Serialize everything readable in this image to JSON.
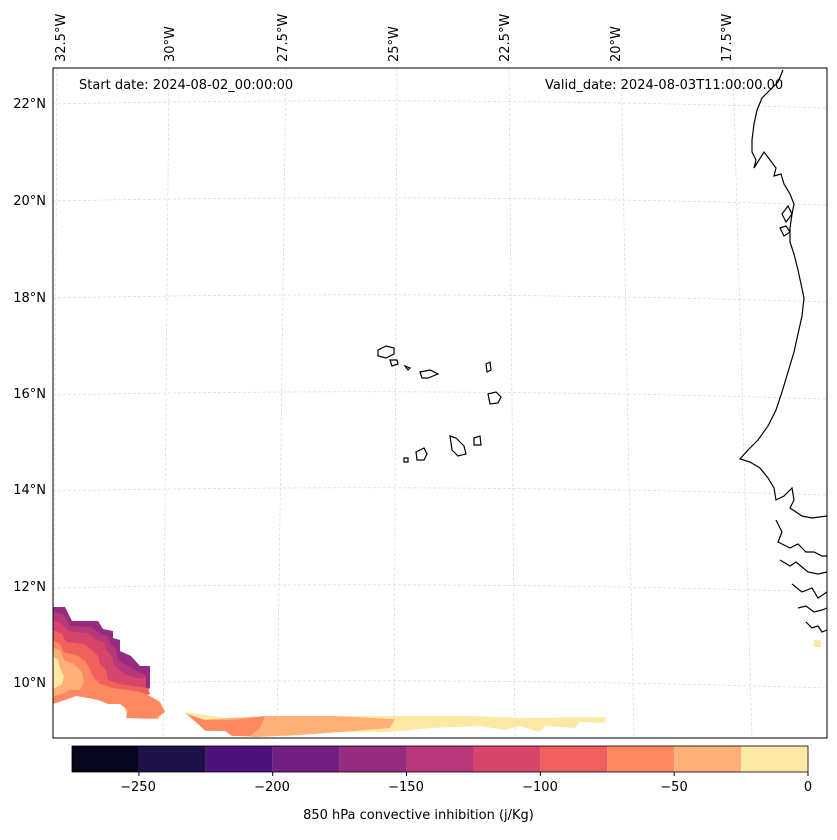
{
  "map": {
    "start_date": "Start date: 2024-08-02_00:00:00",
    "valid_date": "Valid_date: 2024-08-03T11:00:00.00",
    "lon_labels": [
      "32.5°W",
      "30°W",
      "27.5°W",
      "25°W",
      "22.5°W",
      "20°W",
      "17.5°W"
    ],
    "lat_labels": [
      "22°N",
      "20°N",
      "18°N",
      "16°N",
      "14°N",
      "12°N",
      "10°N"
    ],
    "variable": "850 hPa convective inhibition"
  },
  "colorbar": {
    "label": "850 hPa convective inhibition (j/Kg)",
    "ticks": [
      "−250",
      "−200",
      "−150",
      "−100",
      "−50",
      "0"
    ],
    "levels": [
      -275,
      -250,
      -225,
      -200,
      -175,
      -150,
      -125,
      -100,
      -75,
      -50,
      -25,
      0
    ],
    "colors": [
      "#07061c",
      "#1d1147",
      "#4f127b",
      "#721f81",
      "#952c80",
      "#b73779",
      "#d8456c",
      "#f1605d",
      "#fc8961",
      "#feb078",
      "#fde8a4"
    ],
    "extent": "0 to -275 j/Kg (magma colormap)"
  }
}
